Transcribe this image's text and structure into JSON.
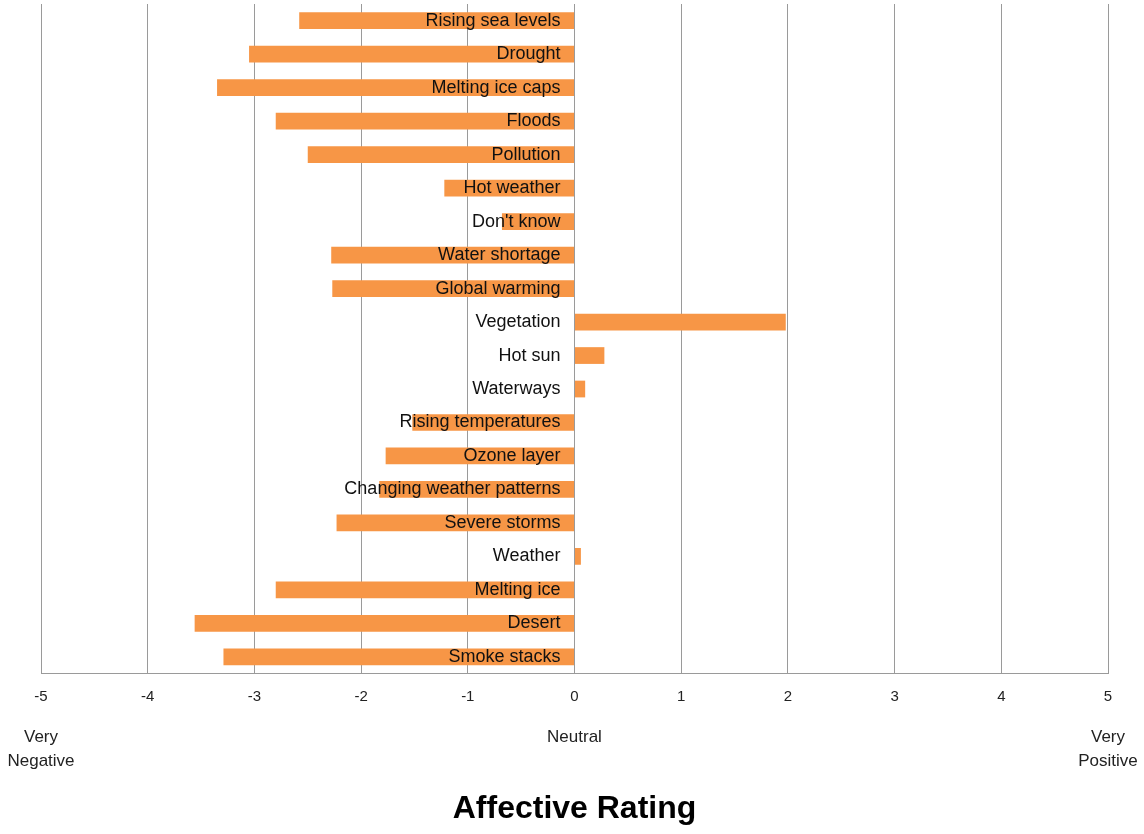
{
  "chart_data": {
    "type": "bar",
    "orientation": "horizontal",
    "xlabel": "Affective Rating",
    "categories": [
      "Rising sea levels",
      "Drought",
      "Melting ice caps",
      "Floods",
      "Pollution",
      "Hot weather",
      "Don't know",
      "Water shortage",
      "Global warming",
      "Vegetation",
      "Hot sun",
      "Waterways",
      "Rising temperatures",
      "Ozone layer",
      "Changing weather patterns",
      "Severe storms",
      "Weather",
      "Melting ice",
      "Desert",
      "Smoke stacks"
    ],
    "values": [
      -2.58,
      -3.05,
      -3.35,
      -2.8,
      -2.5,
      -1.22,
      -0.68,
      -2.28,
      -2.27,
      1.98,
      0.28,
      0.1,
      -1.52,
      -1.77,
      -1.83,
      -2.23,
      0.06,
      -2.8,
      -3.56,
      -3.29
    ],
    "color": "#f79646",
    "xlim": [
      -5,
      5
    ],
    "xticks": [
      -5,
      -4,
      -3,
      -2,
      -1,
      0,
      1,
      2,
      3,
      4,
      5
    ],
    "grid": "x",
    "annotations": [
      "Very\nNegative",
      "Neutral",
      "Very\nPositive"
    ]
  }
}
